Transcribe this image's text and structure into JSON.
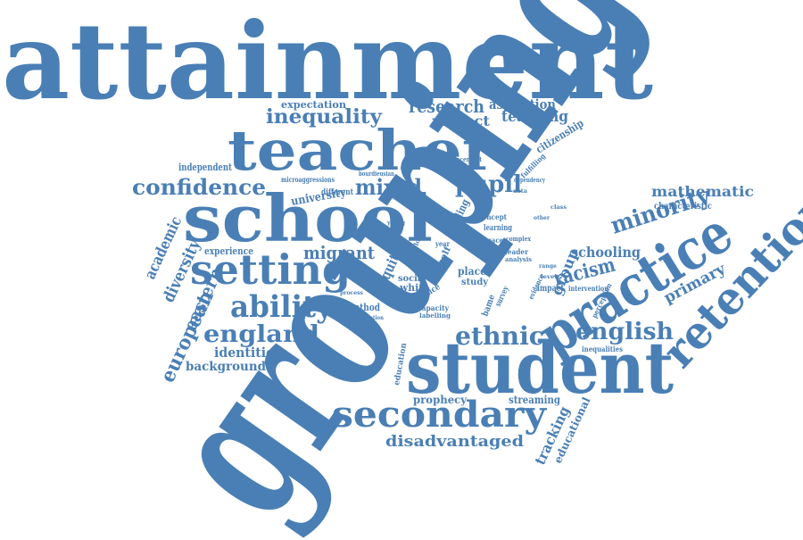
{
  "color": "#4a7fb5",
  "words": [
    "attainment",
    "grouping",
    "student",
    "school",
    "teacher",
    "setting",
    "practice",
    "retention",
    "secondary",
    "ability",
    "england",
    "inequality",
    "confidence",
    "pupil",
    "mixed",
    "ethnic",
    "english",
    "minority",
    "migrant",
    "research",
    "project",
    "teaching",
    "aspiration",
    "expectation",
    "identities",
    "background",
    "european",
    "eastern",
    "diversity",
    "academic",
    "disadvantaged",
    "prophecy",
    "streaming",
    "tracking",
    "educational",
    "primary",
    "racism",
    "group",
    "schooling",
    "mathematic",
    "characteristic",
    "citizenship",
    "independent",
    "university",
    "experience",
    "method",
    "equity",
    "social",
    "place",
    "study",
    "white",
    "justice",
    "capacity",
    "labelling",
    "education",
    "impact",
    "finding",
    "concept",
    "learning",
    "leader",
    "analysis",
    "evidence",
    "intervention",
    "inequalities",
    "perception",
    "placement",
    "fulfilling",
    "dependency",
    "year",
    "more",
    "self",
    "fame",
    "bame",
    "survey",
    "different",
    "microaggressions",
    "bourdieusian",
    "stage",
    "space",
    "complex",
    "allocation",
    "factor",
    "young",
    "lower",
    "other",
    "range",
    "level",
    "process",
    "policy",
    "culture",
    "data",
    "class"
  ]
}
